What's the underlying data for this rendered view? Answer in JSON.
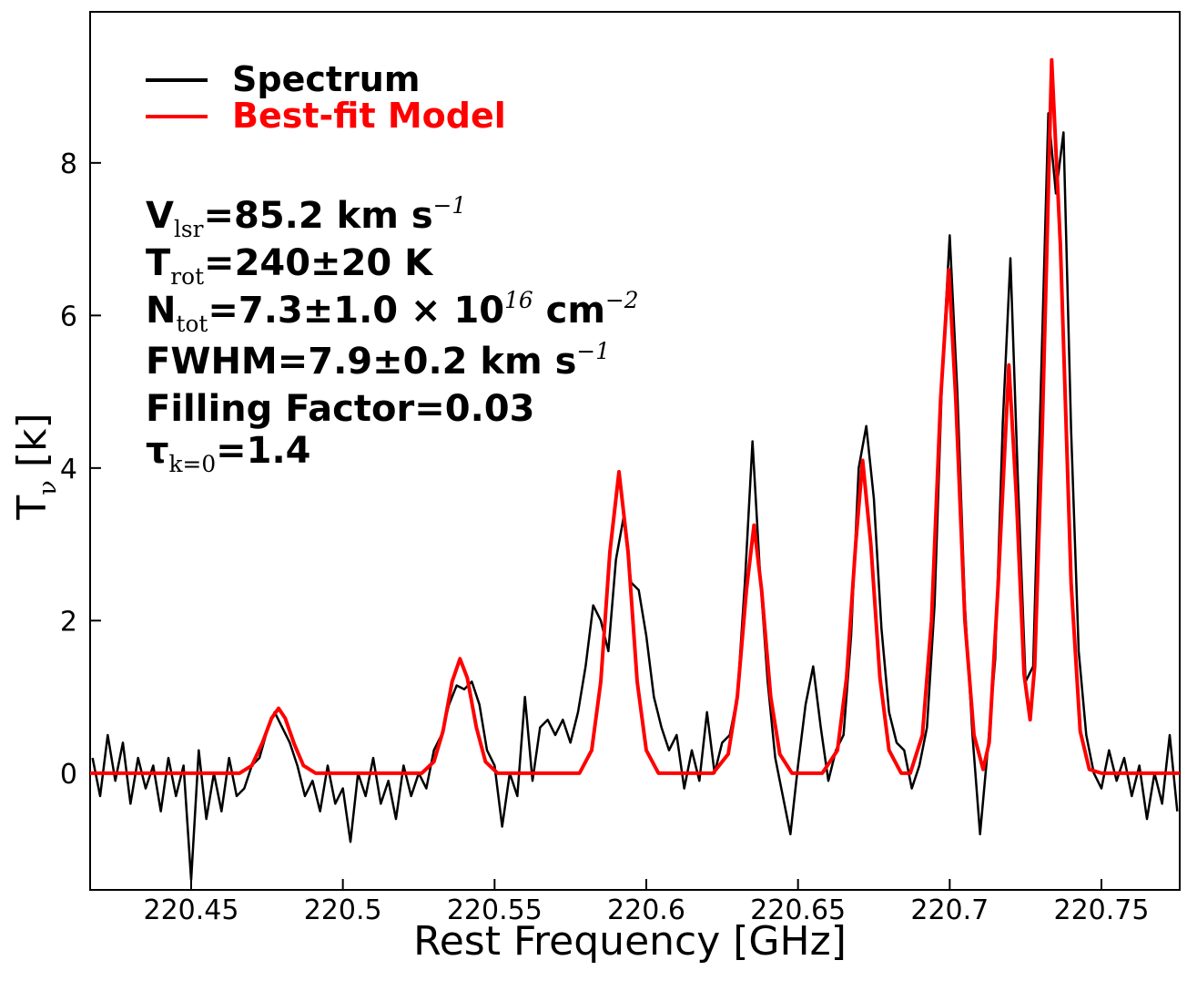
{
  "chart_data": {
    "type": "line",
    "xlabel": "Rest Frequency [GHz]",
    "ylabel": {
      "parts": [
        "T",
        "ν",
        " [k]"
      ],
      "scripts": [
        "base",
        "sub",
        "base"
      ]
    },
    "xlim": [
      220.4167,
      220.7758
    ],
    "ylim": [
      -1.53,
      9.98
    ],
    "xticks": [
      220.45,
      220.5,
      220.55,
      220.6,
      220.65,
      220.7,
      220.75
    ],
    "yticks": [
      0,
      2,
      4,
      6,
      8
    ],
    "legend": "upper left",
    "annotations": [
      {
        "parts": [
          "V",
          "lsr",
          "=85.2 km s",
          "−1"
        ],
        "scripts": [
          "base",
          "sub",
          "base",
          "sup"
        ]
      },
      {
        "parts": [
          "T",
          "rot",
          "=240±20 K"
        ],
        "scripts": [
          "base",
          "sub",
          "base"
        ]
      },
      {
        "parts": [
          "N",
          "tot",
          "=7.3±1.0 × 10",
          "16",
          " cm",
          "−2"
        ],
        "scripts": [
          "base",
          "sub",
          "base",
          "sup",
          "base",
          "sup"
        ]
      },
      {
        "parts": [
          "FWHM=7.9±0.2 km s",
          "−1"
        ],
        "scripts": [
          "base",
          "sup"
        ]
      },
      {
        "parts": [
          "Filling Factor=0.03"
        ],
        "scripts": [
          "base"
        ]
      },
      {
        "parts": [
          "τ",
          "k=0",
          "=1.4"
        ],
        "scripts": [
          "base",
          "sub",
          "base"
        ]
      }
    ],
    "series": [
      {
        "name": "Spectrum",
        "color": "#000000",
        "x": [
          220.4175,
          220.42,
          220.4225,
          220.425,
          220.4275,
          220.43,
          220.4325,
          220.435,
          220.4375,
          220.44,
          220.4425,
          220.445,
          220.4475,
          220.45,
          220.4525,
          220.455,
          220.4575,
          220.46,
          220.4625,
          220.465,
          220.4675,
          220.47,
          220.4725,
          220.475,
          220.4775,
          220.48,
          220.4825,
          220.485,
          220.4875,
          220.49,
          220.4925,
          220.495,
          220.4975,
          220.5,
          220.5025,
          220.505,
          220.5075,
          220.51,
          220.5125,
          220.515,
          220.5175,
          220.52,
          220.5225,
          220.525,
          220.5275,
          220.53,
          220.5325,
          220.535,
          220.5375,
          220.54,
          220.5425,
          220.545,
          220.5475,
          220.55,
          220.5525,
          220.555,
          220.5575,
          220.56,
          220.5625,
          220.565,
          220.5675,
          220.57,
          220.5725,
          220.575,
          220.5775,
          220.58,
          220.5825,
          220.585,
          220.5875,
          220.59,
          220.5925,
          220.595,
          220.5975,
          220.6,
          220.6025,
          220.605,
          220.6075,
          220.61,
          220.6125,
          220.615,
          220.6175,
          220.62,
          220.6225,
          220.625,
          220.6275,
          220.63,
          220.6325,
          220.635,
          220.6375,
          220.64,
          220.6425,
          220.645,
          220.6475,
          220.65,
          220.6525,
          220.655,
          220.6575,
          220.66,
          220.6625,
          220.665,
          220.6675,
          220.67,
          220.6725,
          220.675,
          220.6775,
          220.68,
          220.6825,
          220.685,
          220.6875,
          220.69,
          220.6925,
          220.695,
          220.6975,
          220.7,
          220.7025,
          220.705,
          220.7075,
          220.71,
          220.7125,
          220.715,
          220.7175,
          220.72,
          220.7225,
          220.725,
          220.7275,
          220.73,
          220.7325,
          220.735,
          220.7375,
          220.74,
          220.7425,
          220.745,
          220.7475,
          220.75,
          220.7525,
          220.755,
          220.7575,
          220.76,
          220.7625,
          220.765,
          220.7675,
          220.77,
          220.7725,
          220.775
        ],
        "values": [
          0.2,
          -0.3,
          0.5,
          -0.1,
          0.4,
          -0.4,
          0.2,
          -0.2,
          0.1,
          -0.5,
          0.2,
          -0.3,
          0.1,
          -1.4,
          0.3,
          -0.6,
          0.0,
          -0.5,
          0.2,
          -0.3,
          -0.2,
          0.1,
          0.2,
          0.55,
          0.8,
          0.6,
          0.4,
          0.1,
          -0.3,
          -0.1,
          -0.5,
          0.1,
          -0.4,
          -0.2,
          -0.9,
          0.0,
          -0.3,
          0.2,
          -0.4,
          -0.1,
          -0.6,
          0.1,
          -0.3,
          0.0,
          -0.2,
          0.3,
          0.5,
          0.9,
          1.15,
          1.1,
          1.2,
          0.9,
          0.3,
          0.1,
          -0.7,
          0.0,
          -0.3,
          1.0,
          -0.1,
          0.6,
          0.7,
          0.5,
          0.7,
          0.4,
          0.8,
          1.4,
          2.2,
          2.0,
          1.6,
          2.8,
          3.35,
          2.5,
          2.4,
          1.8,
          1.0,
          0.6,
          0.3,
          0.5,
          -0.2,
          0.3,
          -0.1,
          0.8,
          0.0,
          0.4,
          0.5,
          1.0,
          2.5,
          4.35,
          2.6,
          1.2,
          0.2,
          -0.3,
          -0.8,
          0.1,
          0.9,
          1.4,
          0.6,
          -0.1,
          0.3,
          0.5,
          1.8,
          4.0,
          4.55,
          3.6,
          1.9,
          0.8,
          0.4,
          0.3,
          -0.2,
          0.1,
          0.6,
          2.2,
          5.2,
          7.05,
          5.0,
          2.2,
          0.5,
          -0.8,
          0.3,
          1.5,
          4.6,
          6.75,
          3.8,
          1.2,
          1.4,
          5.0,
          8.65,
          7.6,
          8.4,
          4.5,
          1.6,
          0.5,
          0.0,
          -0.2,
          0.3,
          -0.1,
          0.2,
          -0.3,
          0.1,
          -0.6,
          0.0,
          -0.4,
          0.5,
          -0.5
        ]
      },
      {
        "name": "Best-fit Model",
        "color": "#ff0000",
        "x": [
          220.4167,
          220.466,
          220.47,
          220.4735,
          220.4765,
          220.4788,
          220.481,
          220.484,
          220.487,
          220.491,
          220.526,
          220.53,
          220.533,
          220.536,
          220.5386,
          220.541,
          220.544,
          220.547,
          220.551,
          220.578,
          220.582,
          220.585,
          220.588,
          220.591,
          220.594,
          220.597,
          220.6,
          220.604,
          220.622,
          220.627,
          220.63,
          220.633,
          220.6355,
          220.638,
          220.641,
          220.644,
          220.648,
          220.658,
          220.663,
          220.666,
          220.669,
          220.6713,
          220.674,
          220.677,
          220.68,
          220.684,
          220.687,
          220.691,
          220.694,
          220.697,
          220.6997,
          220.702,
          220.705,
          220.708,
          220.711,
          220.713,
          220.716,
          220.7195,
          220.722,
          220.7245,
          220.7265,
          220.728,
          220.7305,
          220.7336,
          220.7365,
          220.74,
          220.743,
          220.746,
          220.75,
          220.7758
        ],
        "values": [
          0,
          0,
          0.1,
          0.4,
          0.72,
          0.85,
          0.72,
          0.38,
          0.1,
          0,
          0,
          0.15,
          0.55,
          1.2,
          1.5,
          1.25,
          0.6,
          0.15,
          0,
          0,
          0.3,
          1.2,
          2.9,
          3.95,
          2.9,
          1.2,
          0.3,
          0,
          0,
          0.25,
          1.0,
          2.4,
          3.25,
          2.4,
          1.0,
          0.25,
          0,
          0,
          0.3,
          1.25,
          3.0,
          4.1,
          3.0,
          1.25,
          0.3,
          0,
          0,
          0.5,
          2.0,
          4.9,
          6.6,
          4.9,
          2.0,
          0.5,
          0.05,
          0.4,
          2.5,
          5.35,
          3.6,
          1.3,
          0.7,
          1.4,
          4.5,
          9.35,
          6.9,
          2.5,
          0.55,
          0.05,
          0,
          0
        ]
      }
    ]
  }
}
